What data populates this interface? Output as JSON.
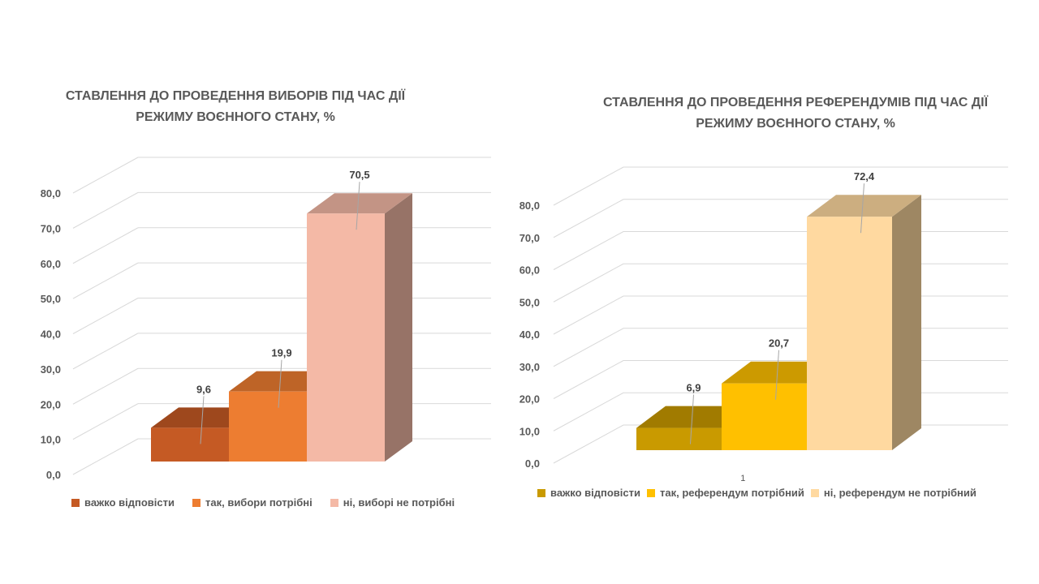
{
  "chart_data": [
    {
      "type": "bar",
      "title": "СТАВЛЕННЯ ДО ПРОВЕДЕННЯ ВИБОРІВ ПІД ЧАС ДІЇ РЕЖИМУ ВОЄННОГО СТАНУ, %",
      "title_lines": [
        "СТАВЛЕННЯ ДО ПРОВЕДЕННЯ ВИБОРІВ ПІД ЧАС ДІЇ",
        "РЕЖИМУ ВОЄННОГО СТАНУ, %"
      ],
      "categories": [
        ""
      ],
      "category_label": "",
      "series": [
        {
          "name": "важко відповісти",
          "values": [
            9.6
          ],
          "label": "9,6",
          "color": "#C55A24"
        },
        {
          "name": "так, вибори потрібні",
          "values": [
            19.9
          ],
          "label": "19,9",
          "color": "#ED7D31"
        },
        {
          "name": "ні, виборі не потрібні",
          "values": [
            70.5
          ],
          "label": "70,5",
          "color": "#F4B9A6"
        }
      ],
      "yticks": [
        "0,0",
        "10,0",
        "20,0",
        "30,0",
        "40,0",
        "50,0",
        "60,0",
        "70,0",
        "80,0"
      ],
      "ylim": [
        0,
        80
      ],
      "grid": true,
      "legend": "bottom",
      "style": "3d"
    },
    {
      "type": "bar",
      "title": "СТАВЛЕННЯ ДО ПРОВЕДЕННЯ РЕФЕРЕНДУМІВ ПІД ЧАС ДІЇ РЕЖИМУ ВОЄННОГО СТАНУ, %",
      "title_lines": [
        "СТАВЛЕННЯ ДО ПРОВЕДЕННЯ РЕФЕРЕНДУМІВ ПІД ЧАС ДІЇ",
        "РЕЖИМУ ВОЄННОГО СТАНУ, %"
      ],
      "categories": [
        "1"
      ],
      "category_label": "1",
      "series": [
        {
          "name": "важко відповісти",
          "values": [
            6.9
          ],
          "label": "6,9",
          "color": "#C99A00"
        },
        {
          "name": "так, референдум потрібний",
          "values": [
            20.7
          ],
          "label": "20,7",
          "color": "#FFC000"
        },
        {
          "name": "ні, референдум не потрібний",
          "values": [
            72.4
          ],
          "label": "72,4",
          "color": "#FFD9A0"
        }
      ],
      "yticks": [
        "0,0",
        "10,0",
        "20,0",
        "30,0",
        "40,0",
        "50,0",
        "60,0",
        "70,0",
        "80,0"
      ],
      "ylim": [
        0,
        80
      ],
      "grid": true,
      "legend": "bottom",
      "style": "3d"
    }
  ]
}
